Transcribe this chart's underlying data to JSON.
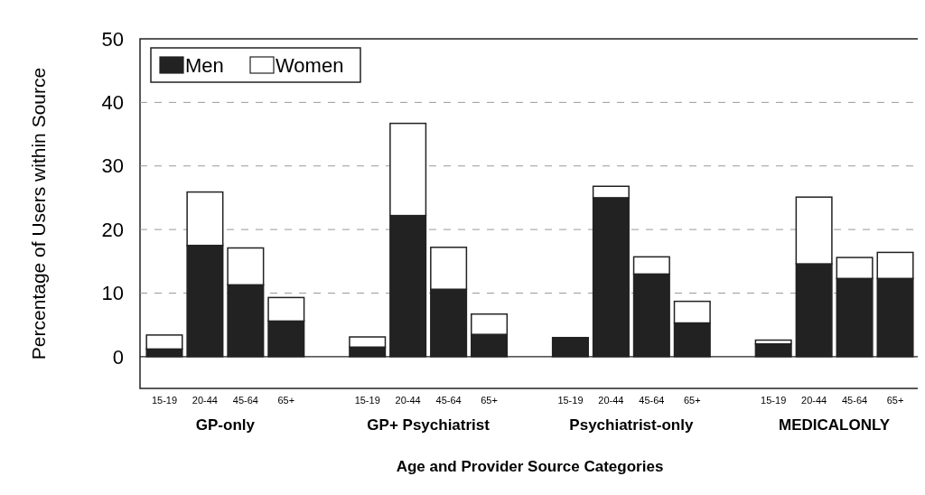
{
  "chart_data": {
    "type": "bar",
    "stacked": true,
    "categories": [
      "15-19",
      "20-44",
      "45-64",
      "65+",
      "15-19",
      "20-44",
      "45-64",
      "65+",
      "15-19",
      "20-44",
      "45-64",
      "65+",
      "15-19",
      "20-44",
      "45-64",
      "65+"
    ],
    "series": [
      {
        "name": "Men",
        "color": "#222222",
        "values": [
          1.2,
          17.5,
          11.3,
          5.6,
          1.5,
          22.2,
          10.6,
          3.5,
          3.0,
          25.0,
          13.0,
          5.3,
          2.0,
          14.6,
          12.3,
          12.3
        ]
      },
      {
        "name": "Women",
        "color": "#ffffff",
        "values": [
          2.2,
          8.4,
          5.8,
          3.7,
          1.6,
          14.5,
          6.6,
          3.2,
          0,
          1.8,
          2.7,
          3.4,
          0.6,
          10.5,
          3.3,
          4.1
        ]
      }
    ],
    "ylabel": "Percentage of Users within Source",
    "xlabel": "Age and Provider Source Categories",
    "annotations": [
      "GP-only",
      "GP+ Psychiatrist",
      "Psychiatrist-only",
      "MEDICALONLY"
    ],
    "ylim": [
      -5,
      50
    ],
    "yticks": [
      0,
      10,
      20,
      30,
      40,
      50
    ],
    "grid": "y",
    "legend": "top left"
  }
}
